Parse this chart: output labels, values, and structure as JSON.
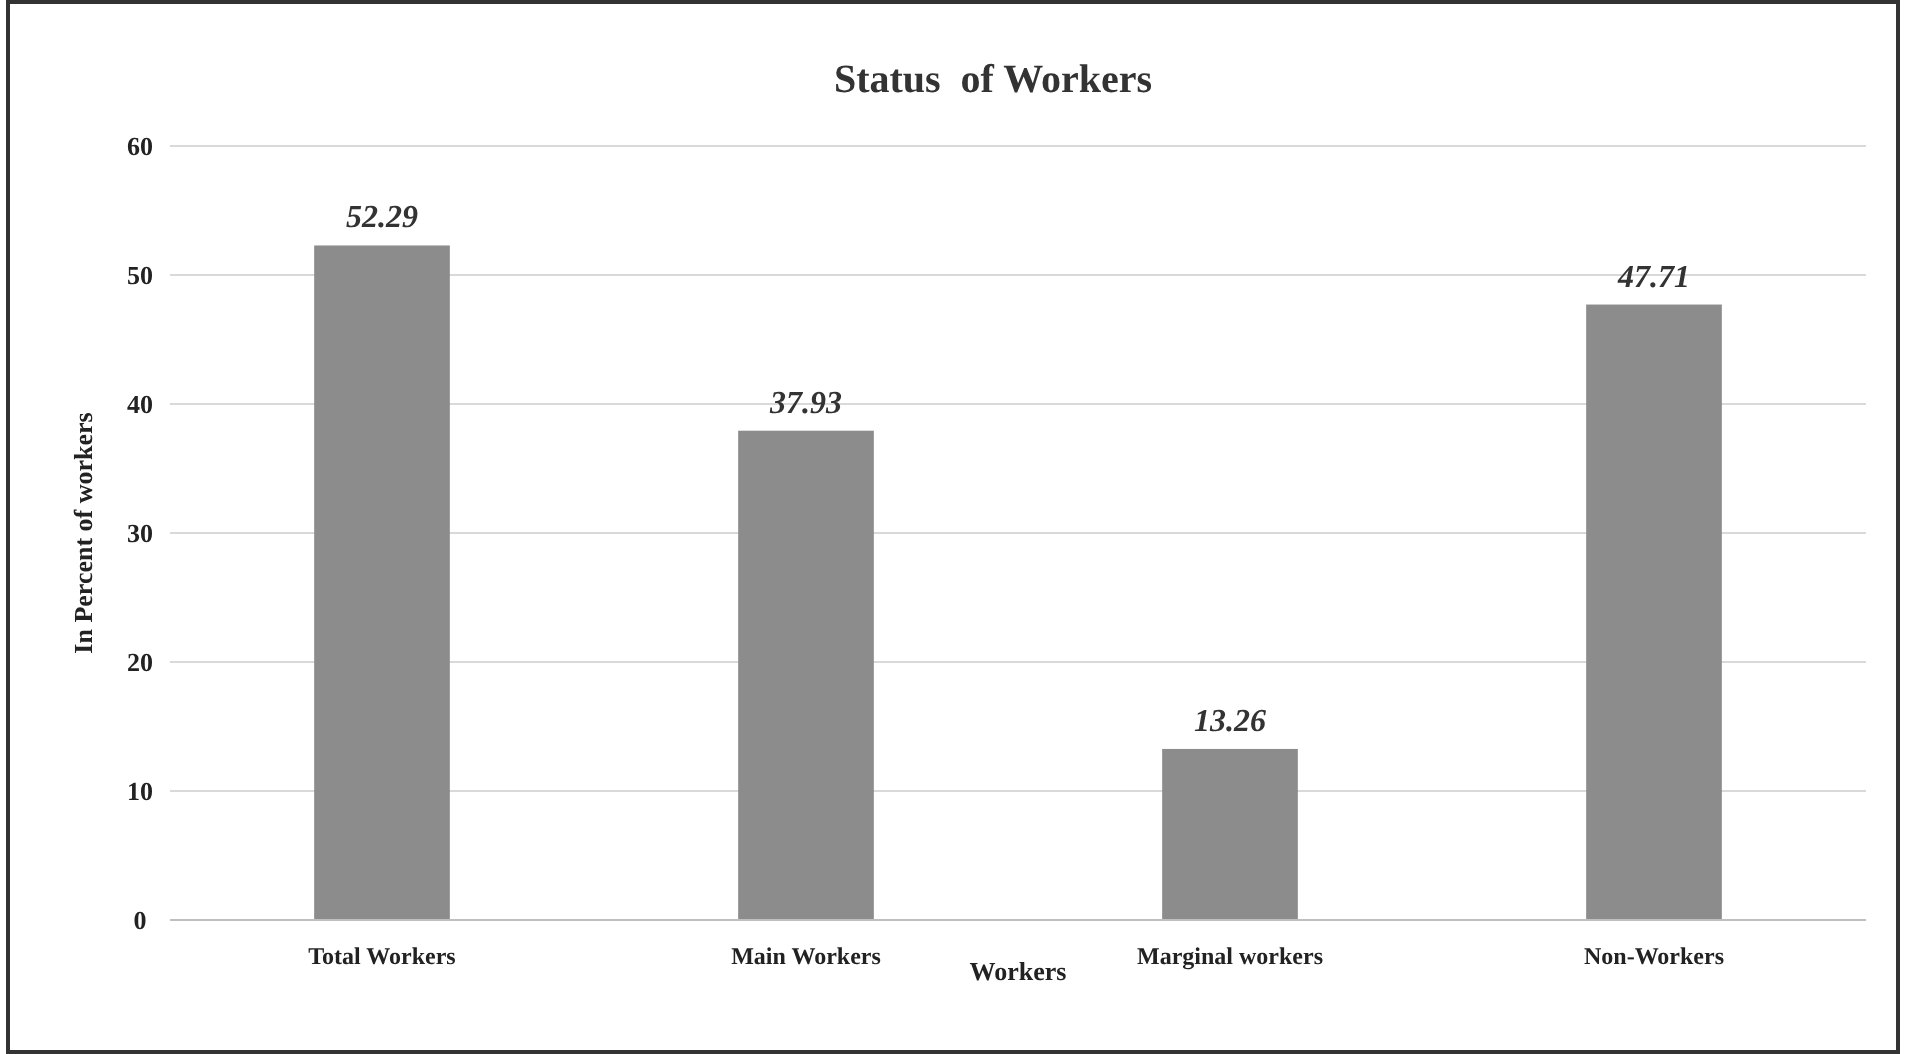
{
  "chart_data": {
    "type": "bar",
    "title": "Status  of Workers",
    "xlabel": "Workers",
    "ylabel": "In Percent of workers",
    "categories": [
      "Total Workers",
      "Main Workers",
      "Marginal workers",
      "Non-Workers"
    ],
    "values": [
      52.29,
      37.93,
      13.26,
      47.71
    ],
    "color": "#8c8c8c",
    "ylim": [
      0,
      60
    ],
    "yticks": [
      0,
      10,
      20,
      30,
      40,
      50,
      60
    ],
    "grid": "y",
    "data_labels": true
  }
}
